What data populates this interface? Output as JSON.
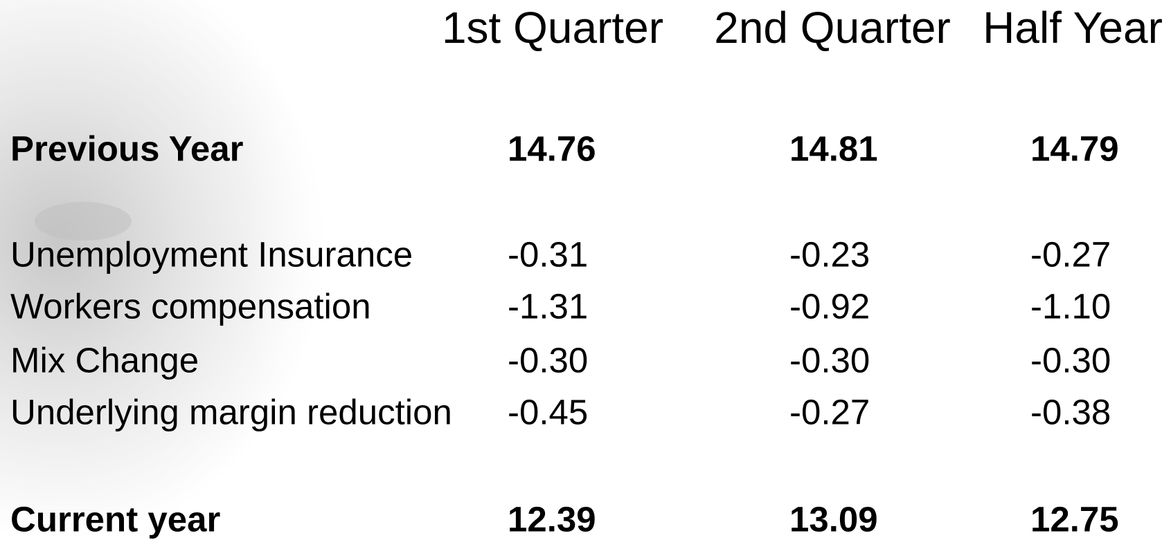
{
  "table": {
    "columns": [
      "1st Quarter",
      "2nd Quarter",
      "Half Year"
    ],
    "rows": [
      {
        "label": "Previous Year",
        "values": [
          "14.76",
          "14.81",
          "14.79"
        ]
      },
      {
        "label": "Unemployment Insurance",
        "values": [
          "-0.31",
          "-0.23",
          "-0.27"
        ]
      },
      {
        "label": "Workers compensation",
        "values": [
          "-1.31",
          "-0.92",
          "-1.10"
        ]
      },
      {
        "label": "Mix Change",
        "values": [
          "-0.30",
          "-0.30",
          "-0.30"
        ]
      },
      {
        "label": "Underlying margin reduction",
        "values": [
          "-0.45",
          "-0.27",
          "-0.38"
        ]
      },
      {
        "label": "Current year",
        "values": [
          "12.39",
          "13.09",
          "12.75"
        ]
      }
    ]
  }
}
